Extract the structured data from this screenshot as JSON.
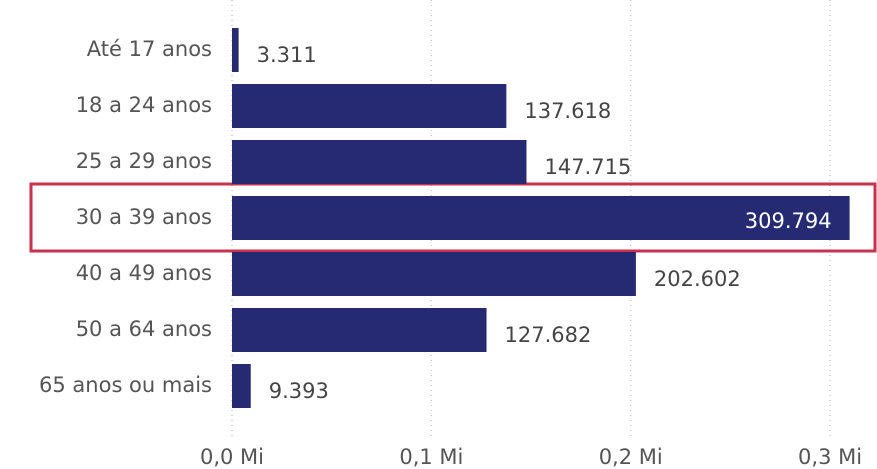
{
  "chart_data": {
    "type": "bar",
    "orientation": "horizontal",
    "categories": [
      "Até 17 anos",
      "18 a 24 anos",
      "25 a 29 anos",
      "30 a 39 anos",
      "40 a 49 anos",
      "50 a 64 anos",
      "65 anos ou mais"
    ],
    "values": [
      3311,
      137618,
      147715,
      309794,
      202602,
      127682,
      9393
    ],
    "value_labels": [
      "3.311",
      "137.618",
      "147.715",
      "309.794",
      "202.602",
      "127.682",
      "9.393"
    ],
    "color": "#252a72",
    "xlim": [
      0,
      310000
    ],
    "xticks": [
      {
        "value": 0,
        "label": "0,0 Mi"
      },
      {
        "value": 100000,
        "label": "0,1 Mi"
      },
      {
        "value": 200000,
        "label": "0,2 Mi"
      },
      {
        "value": 300000,
        "label": "0,3 Mi"
      }
    ],
    "grid": true
  }
}
